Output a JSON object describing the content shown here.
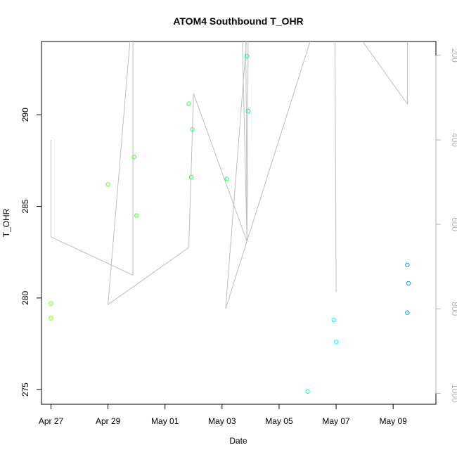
{
  "chart_data": {
    "type": "scatter",
    "title": "ATOM4 Southbound T_OHR",
    "xlabel": "Date",
    "ylabel": "T_OHR",
    "x_type": "date",
    "xlim": [
      "2018-04-26T16:00",
      "2018-05-10T12:00"
    ],
    "ylim": [
      274.2,
      294.0
    ],
    "x_ticks": [
      {
        "date": "2018-04-27",
        "label": "Apr 27"
      },
      {
        "date": "2018-04-29",
        "label": "Apr 29"
      },
      {
        "date": "2018-05-01",
        "label": "May 01"
      },
      {
        "date": "2018-05-03",
        "label": "May 03"
      },
      {
        "date": "2018-05-05",
        "label": "May 05"
      },
      {
        "date": "2018-05-07",
        "label": "May 07"
      },
      {
        "date": "2018-05-09",
        "label": "May 09"
      }
    ],
    "y_ticks": [
      275,
      280,
      285,
      290
    ],
    "right_axis": {
      "direction": "reversed",
      "color": "#b3b3b3",
      "lim": [
        167,
        1026
      ],
      "ticks": [
        200,
        400,
        600,
        800,
        1000
      ]
    },
    "grid": false,
    "legend": "none",
    "point_color_scale": [
      "#7fff00",
      "#00ff7f",
      "#00ffff",
      "#007fff"
    ],
    "series": [
      {
        "marker": "open-circle",
        "points": [
          {
            "x": "2018-04-27T00:00",
            "y": 279.7,
            "color": "#7fff00"
          },
          {
            "x": "2018-04-27T00:00",
            "y": 278.9,
            "color": "#7fff00"
          },
          {
            "x": "2018-04-29T00:00",
            "y": 286.2,
            "color": "#5cff22"
          },
          {
            "x": "2018-04-29T22:00",
            "y": 287.7,
            "color": "#4cff33"
          },
          {
            "x": "2018-04-30T00:00",
            "y": 284.5,
            "color": "#4cff33"
          },
          {
            "x": "2018-05-01T20:00",
            "y": 290.6,
            "color": "#2aff55"
          },
          {
            "x": "2018-05-01T22:00",
            "y": 286.6,
            "color": "#2aff55"
          },
          {
            "x": "2018-05-01T23:00",
            "y": 289.2,
            "color": "#2aff55"
          },
          {
            "x": "2018-05-03T04:00",
            "y": 286.5,
            "color": "#16ff69"
          },
          {
            "x": "2018-05-03T21:00",
            "y": 293.2,
            "color": "#0aff80"
          },
          {
            "x": "2018-05-03T22:00",
            "y": 290.2,
            "color": "#0aff80"
          },
          {
            "x": "2018-05-06T00:00",
            "y": 274.9,
            "color": "#00ffd9"
          },
          {
            "x": "2018-05-06T22:00",
            "y": 278.8,
            "color": "#00fff2"
          },
          {
            "x": "2018-05-07T00:00",
            "y": 277.6,
            "color": "#00fff2"
          },
          {
            "x": "2018-05-09T12:00",
            "y": 281.8,
            "color": "#00a6ff"
          },
          {
            "x": "2018-05-09T13:00",
            "y": 280.8,
            "color": "#00a6ff"
          },
          {
            "x": "2018-05-09T12:00",
            "y": 279.2,
            "color": "#00a6ff"
          }
        ]
      },
      {
        "marker": "line",
        "axis": "right",
        "color": "#bebebe",
        "points": [
          {
            "x": "2018-04-27T00:00",
            "y": 400
          },
          {
            "x": "2018-04-27T00:00",
            "y": 630
          },
          {
            "x": "2018-04-29T21:00",
            "y": 720
          },
          {
            "x": "2018-04-29T21:00",
            "y": 150
          },
          {
            "x": "2018-04-29T19:00",
            "y": 150
          },
          {
            "x": "2018-04-29T00:00",
            "y": 790
          },
          {
            "x": "2018-05-01T20:00",
            "y": 655
          },
          {
            "x": "2018-05-02T00:00",
            "y": 290
          },
          {
            "x": "2018-05-03T21:00",
            "y": 641
          },
          {
            "x": "2018-05-03T17:00",
            "y": 150
          },
          {
            "x": "2018-05-03T20:00",
            "y": 150
          },
          {
            "x": "2018-05-03T21:00",
            "y": 641
          },
          {
            "x": "2018-05-03T22:00",
            "y": 150
          },
          {
            "x": "2018-05-03T21:00",
            "y": 150
          },
          {
            "x": "2018-05-03T03:00",
            "y": 800
          },
          {
            "x": "2018-05-06T04:00",
            "y": 150
          },
          {
            "x": "2018-05-06T23:00",
            "y": 150
          },
          {
            "x": "2018-05-07T00:00",
            "y": 760
          },
          {
            "x": "2018-05-06T23:00",
            "y": 150
          },
          {
            "x": "2018-05-07T18:00",
            "y": 150
          },
          {
            "x": "2018-05-09T12:00",
            "y": 315
          },
          {
            "x": "2018-05-09T12:00",
            "y": 150
          }
        ]
      }
    ]
  }
}
